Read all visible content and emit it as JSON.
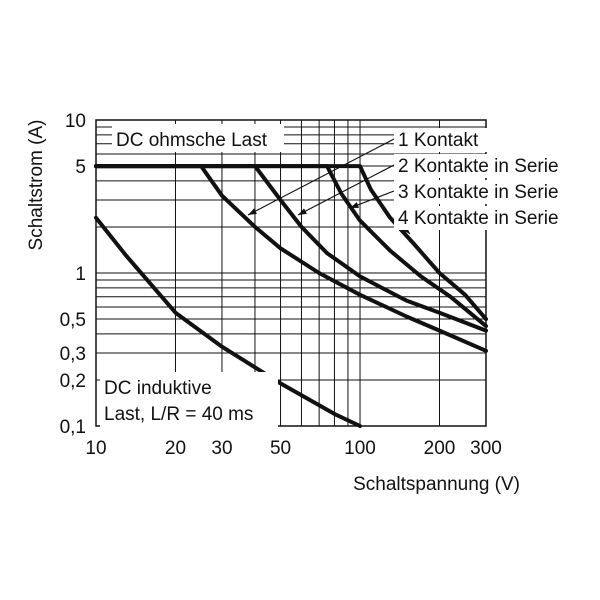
{
  "chart_data": {
    "type": "line",
    "xscale": "log",
    "yscale": "log",
    "xlim": [
      10,
      300
    ],
    "ylim": [
      0.1,
      10
    ],
    "grid": true,
    "xlabel": "Schaltspannung (V)",
    "ylabel": "Schaltstrom (A)",
    "x_ticks": [
      10,
      20,
      30,
      50,
      100,
      200,
      300
    ],
    "x_tick_labels": [
      "10",
      "20",
      "30",
      "50",
      "100",
      "200",
      "300"
    ],
    "y_ticks": [
      0.1,
      0.2,
      0.3,
      0.5,
      1,
      5,
      10
    ],
    "y_tick_labels": [
      "0,1",
      "0,2",
      "0,3",
      "0,5",
      "1",
      "5",
      "10"
    ],
    "annotations": {
      "dc_resistive": "DC ohmsche Last",
      "dc_inductive_line1": "DC induktive",
      "dc_inductive_line2": "Last, L/R = 40 ms"
    },
    "series": [
      {
        "name": "1 Kontakt",
        "group": "ohmic",
        "points": [
          [
            10,
            5
          ],
          [
            25,
            5
          ],
          [
            30,
            3.2
          ],
          [
            40,
            2
          ],
          [
            50,
            1.45
          ],
          [
            70,
            1
          ],
          [
            100,
            0.72
          ],
          [
            150,
            0.52
          ],
          [
            200,
            0.42
          ],
          [
            300,
            0.31
          ]
        ]
      },
      {
        "name": "2 Kontakte in Serie",
        "group": "ohmic",
        "points": [
          [
            10,
            5
          ],
          [
            40,
            5
          ],
          [
            50,
            3
          ],
          [
            60,
            2
          ],
          [
            75,
            1.35
          ],
          [
            100,
            0.95
          ],
          [
            150,
            0.66
          ],
          [
            200,
            0.55
          ],
          [
            300,
            0.42
          ]
        ]
      },
      {
        "name": "3 Kontakte in Serie",
        "group": "ohmic",
        "points": [
          [
            10,
            5
          ],
          [
            75,
            5
          ],
          [
            85,
            3.3
          ],
          [
            100,
            2.2
          ],
          [
            130,
            1.4
          ],
          [
            170,
            0.95
          ],
          [
            220,
            0.7
          ],
          [
            300,
            0.45
          ]
        ]
      },
      {
        "name": "4 Kontakte in Serie",
        "group": "ohmic",
        "points": [
          [
            10,
            5
          ],
          [
            100,
            5
          ],
          [
            110,
            3.5
          ],
          [
            130,
            2.3
          ],
          [
            160,
            1.55
          ],
          [
            200,
            1
          ],
          [
            250,
            0.72
          ],
          [
            300,
            0.5
          ]
        ]
      },
      {
        "name": "",
        "group": "inductive",
        "points": [
          [
            10,
            2.3
          ],
          [
            13,
            1.3
          ],
          [
            20,
            0.55
          ],
          [
            30,
            0.33
          ],
          [
            50,
            0.19
          ],
          [
            80,
            0.12
          ],
          [
            100,
            0.1
          ]
        ]
      }
    ]
  }
}
